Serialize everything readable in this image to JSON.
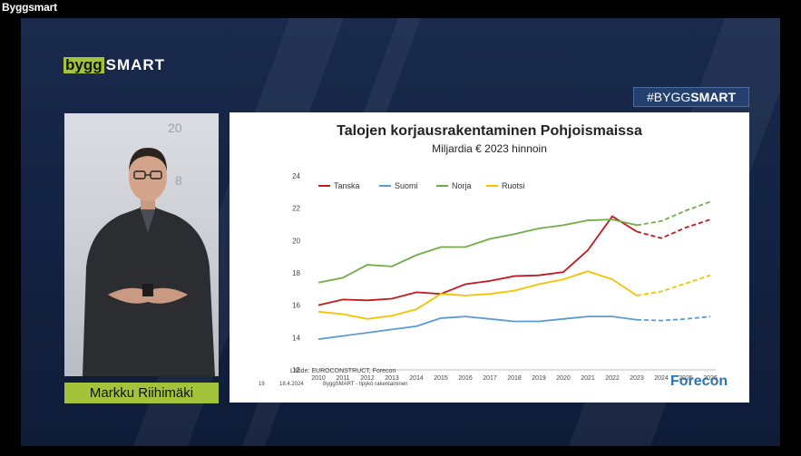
{
  "window": {
    "title": "Byggsmart"
  },
  "logo": {
    "part1": "bygg",
    "part2": "SMART"
  },
  "hashtag": {
    "prefix": "#BYGG",
    "bold": "SMART"
  },
  "speaker": {
    "name": "Markku Riihimäki",
    "background_numbers": [
      "20",
      "8"
    ]
  },
  "slide": {
    "title": "Talojen korjausrakentaminen Pohjoismaissa",
    "subtitle": "Miljardia € 2023 hinnoin",
    "source": "Lähde: EUROCONSTRUCT, Forecon",
    "footer_page": "19",
    "footer_date": "18.4.2024",
    "footer_text": "ByggSMART - Ilpykö rakentaminen",
    "brand": "Forecon"
  },
  "chart_data": {
    "type": "line",
    "x": [
      2010,
      2011,
      2012,
      2013,
      2014,
      2015,
      2016,
      2017,
      2018,
      2019,
      2020,
      2021,
      2022,
      2023,
      2024,
      2025,
      2026
    ],
    "ylim": [
      12,
      24
    ],
    "yticks": [
      12,
      14,
      16,
      18,
      20,
      22,
      24
    ],
    "forecast_from": 2023,
    "grid": false,
    "legend": "top-left",
    "series": [
      {
        "name": "Tanska",
        "color": "#c0191f",
        "values": [
          16.0,
          16.35,
          16.3,
          16.4,
          16.8,
          16.7,
          17.3,
          17.5,
          17.8,
          17.85,
          18.05,
          19.4,
          21.5,
          20.55,
          20.15,
          20.8,
          21.3
        ]
      },
      {
        "name": "Suomi",
        "color": "#5b9bd5",
        "values": [
          13.9,
          14.1,
          14.3,
          14.5,
          14.7,
          15.2,
          15.3,
          15.15,
          15.0,
          15.0,
          15.15,
          15.3,
          15.3,
          15.1,
          15.05,
          15.15,
          15.3
        ]
      },
      {
        "name": "Norja",
        "color": "#70ad47",
        "values": [
          17.4,
          17.7,
          18.5,
          18.4,
          19.1,
          19.6,
          19.6,
          20.1,
          20.4,
          20.75,
          20.95,
          21.25,
          21.3,
          20.95,
          21.2,
          21.85,
          22.4
        ]
      },
      {
        "name": "Ruotsi",
        "color": "#f5c200",
        "values": [
          15.6,
          15.45,
          15.15,
          15.35,
          15.75,
          16.7,
          16.6,
          16.7,
          16.9,
          17.3,
          17.6,
          18.1,
          17.6,
          16.6,
          16.85,
          17.35,
          17.85
        ]
      }
    ]
  }
}
